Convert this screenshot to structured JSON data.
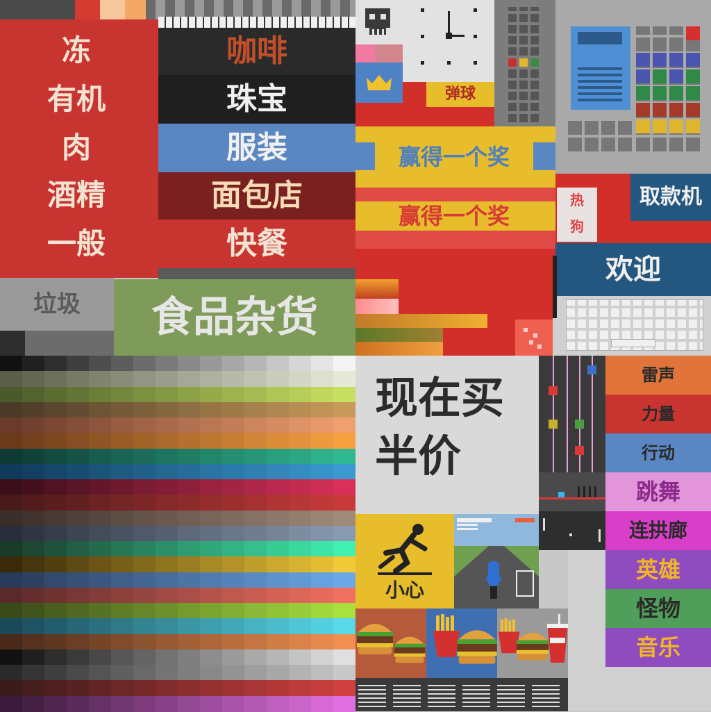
{
  "store_aisle_signs": {
    "left_column": [
      "冻",
      "有机",
      "肉",
      "酒精",
      "一般"
    ],
    "coffee": "咖啡",
    "jewelry": "珠宝",
    "clothing": "服装",
    "bakery": "面包店",
    "fast_food": "快餐",
    "trash": "垃圾",
    "grocery": "食品杂货"
  },
  "arcade_signs": {
    "pinball": "弹球",
    "win_prize_1": "赢得一个奖",
    "win_prize_2": "赢得一个奖",
    "hot_dog": "热狗",
    "atm": "取款机",
    "welcome": "欢迎"
  },
  "promo_poster": {
    "line1": "现在买",
    "line2": "半价"
  },
  "caution_sign": "小心",
  "arcade_game_labels": [
    "雷声",
    "力量",
    "行动",
    "跳舞",
    "连拱廊",
    "英雄",
    "怪物",
    "音乐"
  ],
  "colors": {
    "red": "#c8342f",
    "dark": "#2a2a2a",
    "blue": "#5a86c2",
    "maroon": "#7a2020",
    "olive": "#7f9b59",
    "yellow": "#e7bd2c",
    "orange": "#e0743a",
    "pink": "#e295d9",
    "magenta": "#d93ec9",
    "purple": "#8f4cbf",
    "green": "#4f9e5a",
    "navy": "#24577f"
  },
  "icons": [
    "skull-icon",
    "crown-icon",
    "clock-icon",
    "slip-hazard-icon",
    "burger-icon",
    "fries-icon",
    "drink-icon",
    "scooter-icon"
  ]
}
